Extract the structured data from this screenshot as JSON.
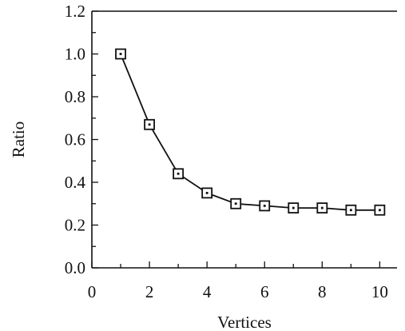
{
  "chart_data": {
    "type": "line",
    "title": "",
    "xlabel": "Vertices",
    "ylabel": "Ratio",
    "xlim": [
      0,
      10.6
    ],
    "ylim": [
      0.0,
      1.2
    ],
    "x_ticks": [
      0,
      2,
      4,
      6,
      8,
      10
    ],
    "x_tick_labels": [
      "0",
      "2",
      "4",
      "6",
      "8",
      "10"
    ],
    "y_ticks": [
      0.0,
      0.2,
      0.4,
      0.6,
      0.8,
      1.0,
      1.2
    ],
    "y_tick_labels": [
      "0.0",
      "0.2",
      "0.4",
      "0.6",
      "0.8",
      "1.0",
      "1.2"
    ],
    "grid": false,
    "series": [
      {
        "marker": "square-with-dot",
        "x": [
          1,
          2,
          3,
          4,
          5,
          6,
          7,
          8,
          9,
          10
        ],
        "y": [
          1.0,
          0.67,
          0.44,
          0.35,
          0.3,
          0.29,
          0.28,
          0.28,
          0.27,
          0.27
        ]
      }
    ]
  }
}
